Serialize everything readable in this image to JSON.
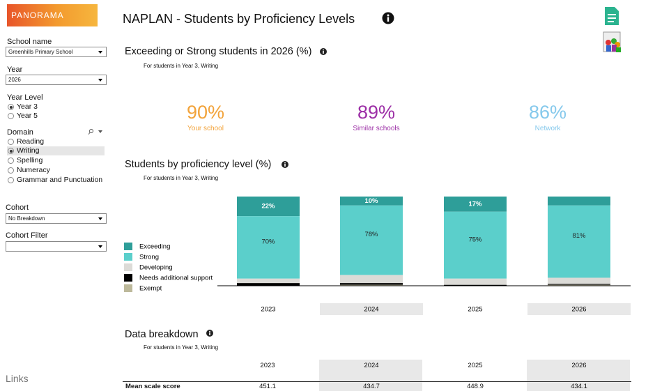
{
  "header": {
    "logo": "PANORAMA",
    "title": "NAPLAN - Students by Proficiency Levels"
  },
  "sidebar": {
    "school_label": "School name",
    "school": "Greenhills Primary School",
    "year_label": "Year",
    "year": "2026",
    "level_label": "Year Level",
    "levels": [
      "Year 3",
      "Year 5"
    ],
    "domain_label": "Domain",
    "domains": [
      "Reading",
      "Writing",
      "Spelling",
      "Numeracy",
      "Grammar and Punctuation"
    ],
    "cohort_label": "Cohort",
    "cohort": "No Breakdown",
    "cohort_filter_label": "Cohort Filter",
    "links": "Links"
  },
  "kpi": {
    "title": "Exceeding or Strong students in 2026 (%)",
    "subtitle": "For students in Year 3, Writing",
    "items": [
      {
        "value": "90%",
        "label": "Your school",
        "color": "#f2a33a"
      },
      {
        "value": "89%",
        "label": "Similar schools",
        "color": "#9c2fa6"
      },
      {
        "value": "86%",
        "label": "Network",
        "color": "#86c9ec"
      }
    ]
  },
  "chart_data": {
    "type": "bar",
    "stacked": true,
    "title": "Students by proficiency level (%)",
    "subtitle": "For students in Year 3, Writing",
    "categories": [
      "2023",
      "2024",
      "2025",
      "2026"
    ],
    "series": [
      {
        "name": "Exceeding",
        "color": "#2e9e99",
        "values": [
          22,
          10,
          17,
          10
        ],
        "value_labels": [
          "22%",
          "10%",
          "17%",
          null
        ]
      },
      {
        "name": "Strong",
        "color": "#5bcfcb",
        "values": [
          70,
          78,
          75,
          81
        ],
        "value_labels": [
          "70%",
          "78%",
          "75%",
          "81%"
        ]
      },
      {
        "name": "Developing",
        "color": "#dcdbd7",
        "values": [
          5,
          9,
          7,
          7
        ]
      },
      {
        "name": "Needs additional support",
        "color": "#000000",
        "values": [
          3,
          2,
          1,
          1
        ]
      },
      {
        "name": "Exempt",
        "color": "#bdb99b",
        "values": [
          0,
          1,
          0,
          1
        ]
      }
    ],
    "ylim": [
      0,
      100
    ]
  },
  "breakdown": {
    "title": "Data breakdown",
    "subtitle": "For students in Year 3, Writing",
    "columns": [
      "2023",
      "2024",
      "2025",
      "2026"
    ],
    "rows": [
      [
        "Mean scale score",
        "451.1",
        "434.7",
        "448.9",
        "434.1"
      ]
    ]
  }
}
